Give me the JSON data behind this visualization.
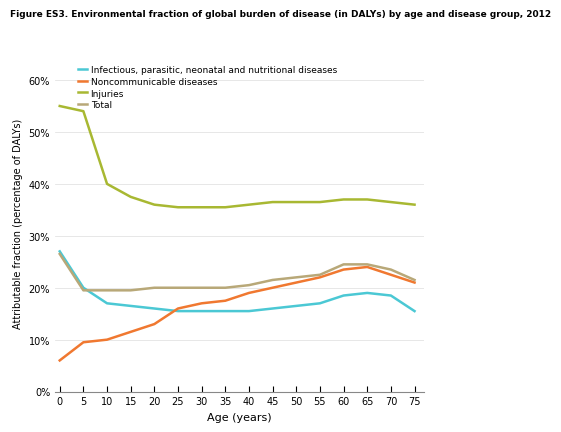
{
  "title": "Figure ES3. Environmental fraction of global burden of disease (in DALYs) by age and disease group, 2012",
  "xlabel": "Age (years)",
  "ylabel": "Attributable fraction (percentage of DALYs)",
  "age_ticks": [
    0,
    5,
    10,
    15,
    20,
    25,
    30,
    35,
    40,
    45,
    50,
    55,
    60,
    65,
    70,
    75
  ],
  "ylim": [
    0,
    0.65
  ],
  "yticks": [
    0.0,
    0.1,
    0.2,
    0.3,
    0.4,
    0.5,
    0.6
  ],
  "legend": [
    "Infectious, parasitic, neonatal and nutritional diseases",
    "Noncommunicable diseases",
    "Injuries",
    "Total"
  ],
  "colors": {
    "infectious": "#4bc8d4",
    "noncommunicable": "#f07830",
    "injuries": "#a8b832",
    "total": "#b8a878"
  },
  "infectious": [
    0.27,
    0.2,
    0.17,
    0.165,
    0.16,
    0.155,
    0.155,
    0.155,
    0.155,
    0.16,
    0.165,
    0.17,
    0.185,
    0.19,
    0.185,
    0.155
  ],
  "noncommunicable": [
    0.06,
    0.095,
    0.1,
    0.115,
    0.13,
    0.16,
    0.17,
    0.175,
    0.19,
    0.2,
    0.21,
    0.22,
    0.235,
    0.24,
    0.225,
    0.21
  ],
  "injuries": [
    0.55,
    0.54,
    0.4,
    0.375,
    0.36,
    0.355,
    0.355,
    0.355,
    0.36,
    0.365,
    0.365,
    0.365,
    0.37,
    0.37,
    0.365,
    0.36
  ],
  "total": [
    0.265,
    0.195,
    0.195,
    0.195,
    0.2,
    0.2,
    0.2,
    0.2,
    0.205,
    0.215,
    0.22,
    0.225,
    0.245,
    0.245,
    0.235,
    0.215
  ],
  "background_color": "#ffffff"
}
